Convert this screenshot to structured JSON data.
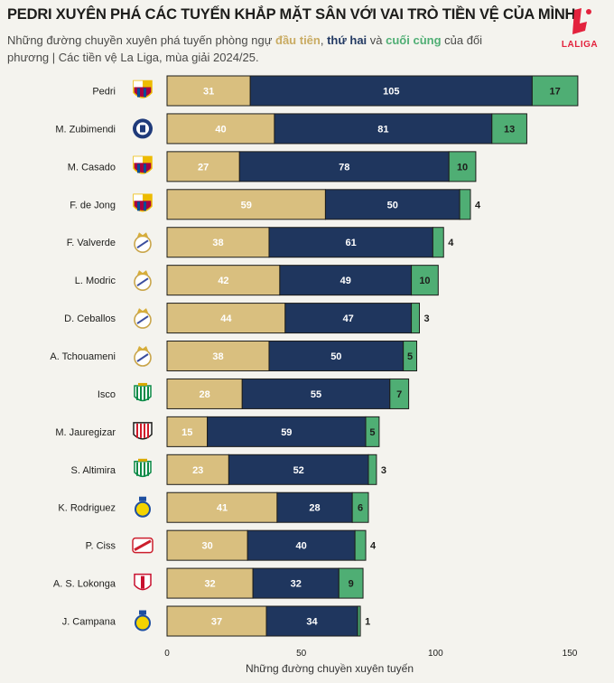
{
  "header": {
    "title": "PEDRI XUYÊN PHÁ CÁC TUYẾN KHẮP MẶT SÂN VỚI VAI TRÒ TIỀN VỆ CỦA MÌNH",
    "subtitle_pre": "Những đường chuyền xuyên phá tuyến phòng ngự ",
    "subtitle_key1": "đầu tiên",
    "subtitle_sep1": ", ",
    "subtitle_key2": "thứ hai",
    "subtitle_sep2": " và ",
    "subtitle_key3": "cuối cùng",
    "subtitle_post": " của đối phương | Các tiền vệ La Liga, mùa giải 2024/25.",
    "logo_text": "LALIGA"
  },
  "colors": {
    "first": "#d9bf7f",
    "second": "#1f365e",
    "third": "#4fae74",
    "background": "#f4f3ee",
    "first_label": "#ffffff",
    "second_label": "#ffffff",
    "third_label": "#1d1d1b"
  },
  "chart_data": {
    "type": "bar",
    "orientation": "horizontal",
    "stacked": true,
    "title": "PEDRI XUYÊN PHÁ CÁC TUYẾN KHẮP MẶT SÂN VỚI VAI TRÒ TIỀN VỆ CỦA MÌNH",
    "xlabel": "Những đường chuyền xuyên tuyến",
    "ylabel": "",
    "xlim": [
      0,
      150
    ],
    "xticks": [
      0,
      50,
      100,
      150
    ],
    "grid": false,
    "categories": [
      "Pedri",
      "M. Zubimendi",
      "M. Casado",
      "F. de Jong",
      "F. Valverde",
      "L. Modric",
      "D. Ceballos",
      "A. Tchouameni",
      "Isco",
      "M. Jauregizar",
      "S. Altimira",
      "K. Rodriguez",
      "P. Ciss",
      "A. S. Lokonga",
      "J. Campana"
    ],
    "clubs": [
      "barcelona",
      "real-sociedad",
      "barcelona",
      "barcelona",
      "real-madrid",
      "real-madrid",
      "real-madrid",
      "real-madrid",
      "real-betis",
      "athletic-bilbao",
      "real-betis",
      "las-palmas",
      "rayo-vallecano",
      "sevilla",
      "las-palmas"
    ],
    "series": [
      {
        "name": "đầu tiên",
        "values": [
          31,
          40,
          27,
          59,
          38,
          42,
          44,
          38,
          28,
          15,
          23,
          41,
          30,
          32,
          37
        ]
      },
      {
        "name": "thứ hai",
        "values": [
          105,
          81,
          78,
          50,
          61,
          49,
          47,
          50,
          55,
          59,
          52,
          28,
          40,
          32,
          34
        ]
      },
      {
        "name": "cuối cùng",
        "values": [
          17,
          13,
          10,
          4,
          4,
          10,
          3,
          5,
          7,
          5,
          3,
          6,
          4,
          9,
          1
        ]
      }
    ]
  }
}
